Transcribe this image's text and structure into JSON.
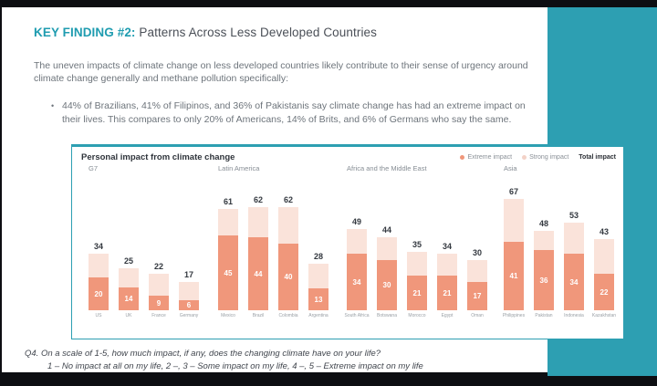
{
  "colors": {
    "accent_teal": "#2d9fb2",
    "accent_teal_text": "#1f9cb0",
    "extreme_salmon": "#f0977b",
    "strong_pink": "#fae3da",
    "legend_strong_dot": "#f3d2c7",
    "background_black": "#0d0e12"
  },
  "slide": {
    "title_accent": "KEY FINDING #2:",
    "title_rest": " Patterns Across Less Developed Countries",
    "paragraph": "The uneven impacts of climate change on less developed countries likely contribute to their sense of urgency around climate change generally and methane pollution specifically:",
    "bullet_marker": "•",
    "bullet": "44% of Brazilians, 41% of Filipinos, and 36% of Pakistanis say climate change has had an extreme impact on their lives. This compares to only 20% of Americans, 14% of Brits, and 6% of Germans who say the same.",
    "footnote_line1": "Q4. On a scale of 1-5, how much impact, if any, does the changing climate have on your life?",
    "footnote_line2": "1 – No impact at all on my life, 2 –, 3 – Some impact on my life, 4 –, 5 – Extreme impact on my life"
  },
  "chart": {
    "title": "Personal impact from climate change",
    "legend": [
      {
        "label": "Extreme impact",
        "dot_color": "#f0977b"
      },
      {
        "label": "Strong impact",
        "dot_color": "#f3d2c7"
      },
      {
        "label": "Total impact",
        "dot_color": null
      }
    ]
  },
  "chart_data": {
    "type": "bar",
    "stacked": true,
    "units": "percent",
    "title": "Personal impact from climate change",
    "series_names": [
      "Extreme impact",
      "Strong impact (remainder of total)"
    ],
    "value_range": [
      0,
      67
    ],
    "groups": [
      {
        "name": "G7",
        "countries": [
          "US",
          "UK",
          "France",
          "Germany"
        ],
        "total": [
          34,
          25,
          22,
          17
        ],
        "extreme": [
          20,
          14,
          9,
          6
        ]
      },
      {
        "name": "Latin America",
        "countries": [
          "Mexico",
          "Brazil",
          "Colombia",
          "Argentina"
        ],
        "total": [
          61,
          62,
          62,
          28
        ],
        "extreme": [
          45,
          44,
          40,
          13
        ]
      },
      {
        "name": "Africa and the Middle East",
        "countries": [
          "South Africa",
          "Botswana",
          "Morocco",
          "Egypt",
          "Oman"
        ],
        "total": [
          49,
          44,
          35,
          34,
          30
        ],
        "extreme": [
          34,
          30,
          21,
          21,
          17
        ]
      },
      {
        "name": "Asia",
        "countries": [
          "Philippines",
          "Pakistan",
          "Indonesia",
          "Kazakhstan"
        ],
        "total": [
          67,
          48,
          53,
          43
        ],
        "extreme": [
          41,
          36,
          34,
          22
        ]
      }
    ]
  }
}
